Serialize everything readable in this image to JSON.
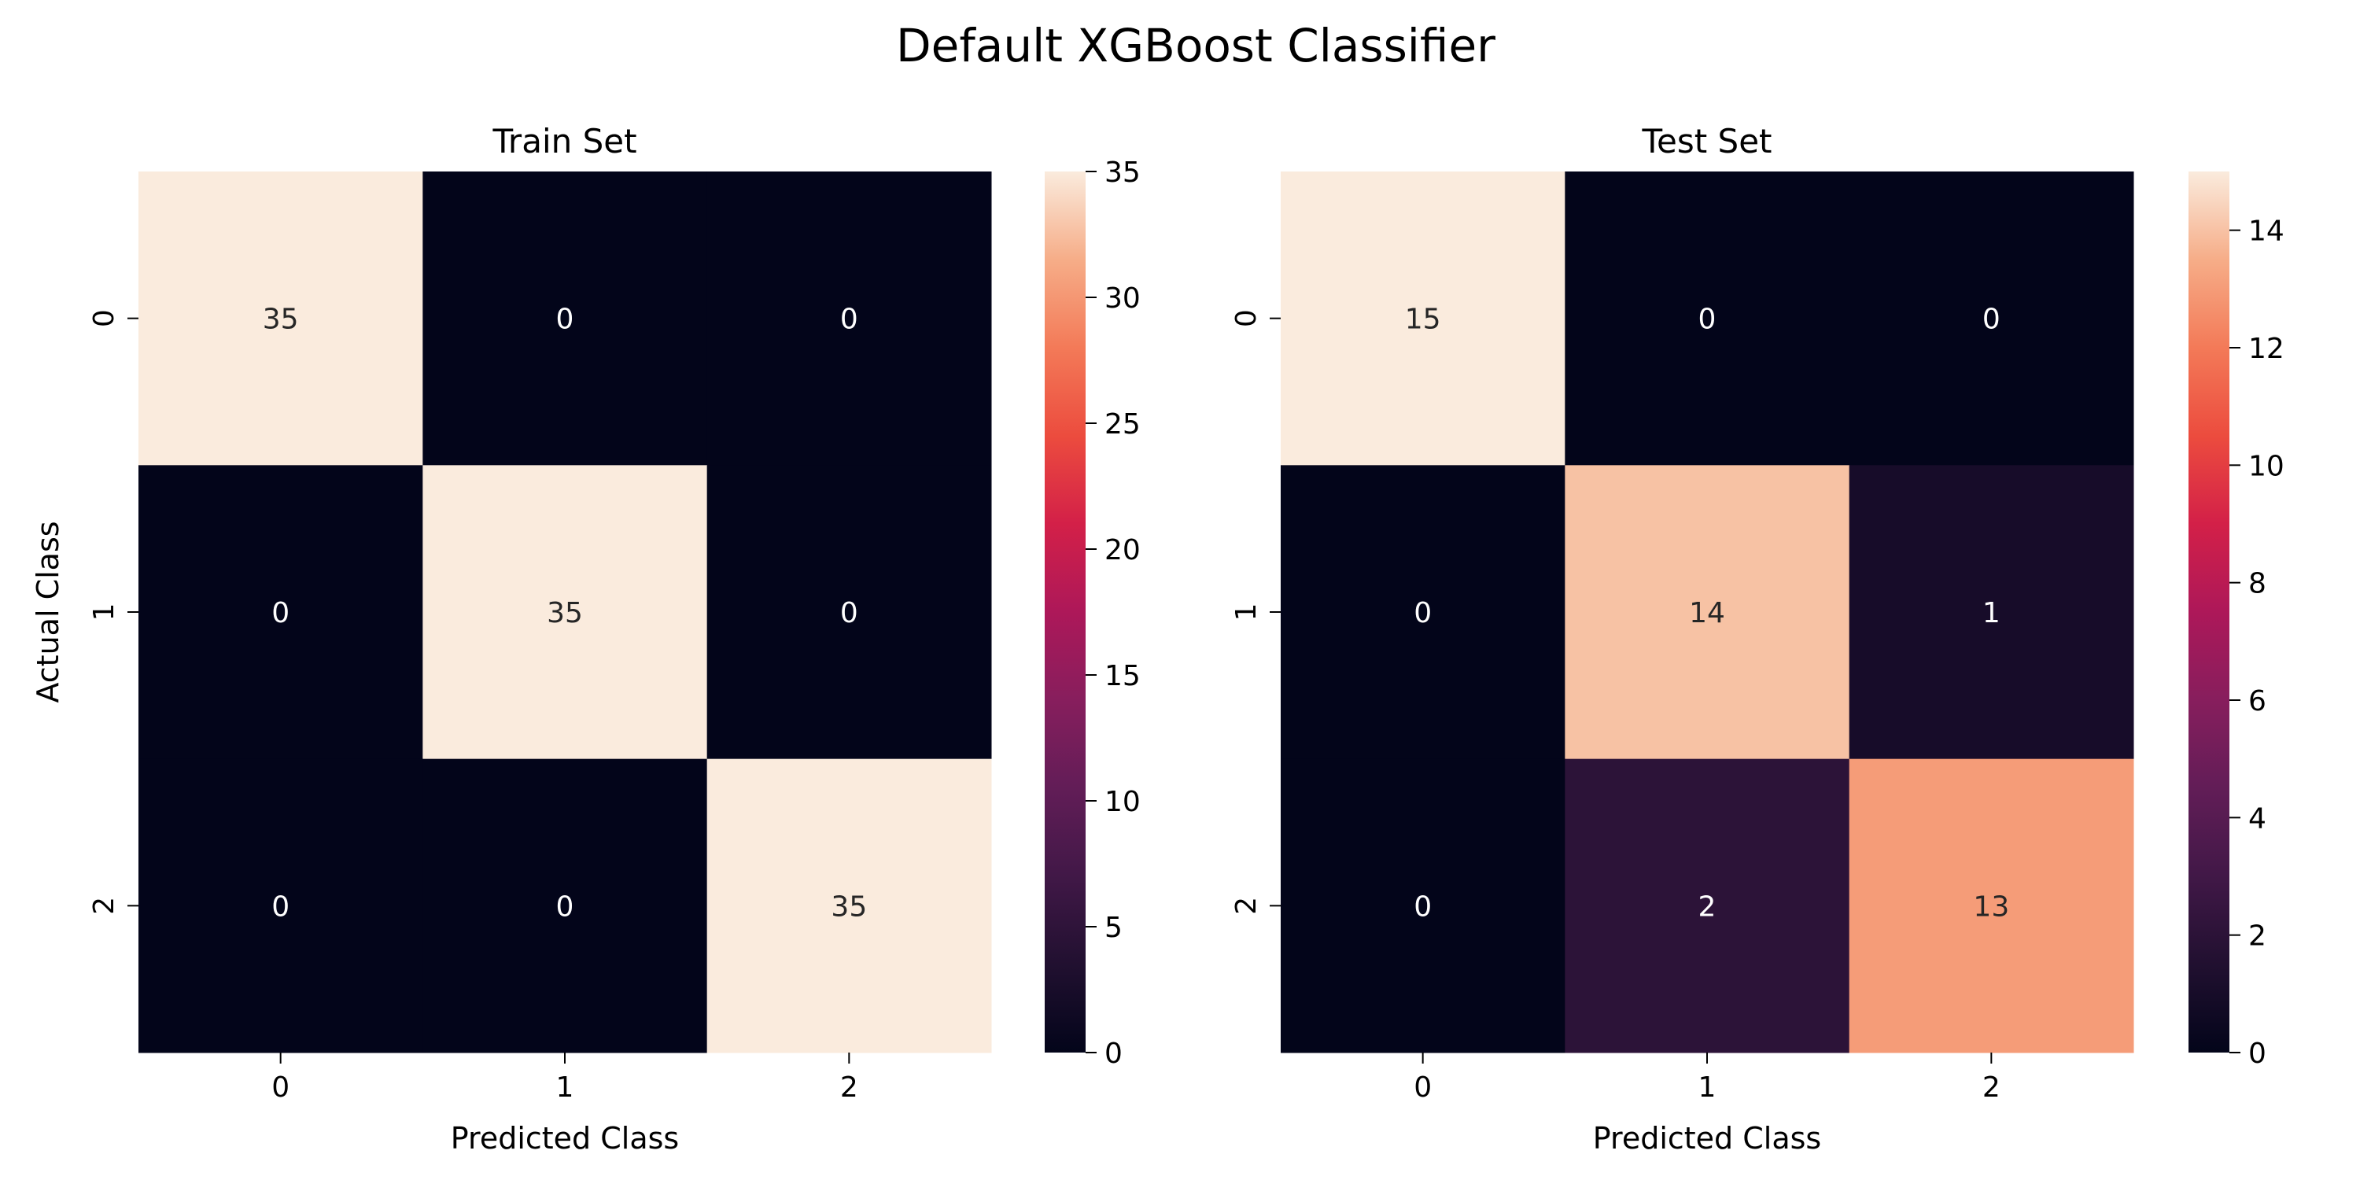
{
  "figure": {
    "title": "Default XGBoost Classifier"
  },
  "chart_data": [
    {
      "type": "heatmap",
      "title": "Train Set",
      "xlabel": "Predicted Class",
      "ylabel": "Actual Class",
      "x_categories": [
        "0",
        "1",
        "2"
      ],
      "y_categories": [
        "0",
        "1",
        "2"
      ],
      "values": [
        [
          35,
          0,
          0
        ],
        [
          0,
          35,
          0
        ],
        [
          0,
          0,
          35
        ]
      ],
      "colorbar": {
        "range": [
          0,
          35
        ],
        "ticks": [
          0,
          5,
          10,
          15,
          20,
          25,
          30,
          35
        ],
        "colormap": "rocket"
      },
      "annotations": true
    },
    {
      "type": "heatmap",
      "title": "Test Set",
      "xlabel": "Predicted Class",
      "ylabel": "",
      "x_categories": [
        "0",
        "1",
        "2"
      ],
      "y_categories": [
        "0",
        "1",
        "2"
      ],
      "values": [
        [
          15,
          0,
          0
        ],
        [
          0,
          14,
          1
        ],
        [
          0,
          2,
          13
        ]
      ],
      "colorbar": {
        "range": [
          0,
          15
        ],
        "ticks": [
          0,
          2,
          4,
          6,
          8,
          10,
          12,
          14
        ],
        "colormap": "rocket"
      },
      "annotations": true
    }
  ]
}
